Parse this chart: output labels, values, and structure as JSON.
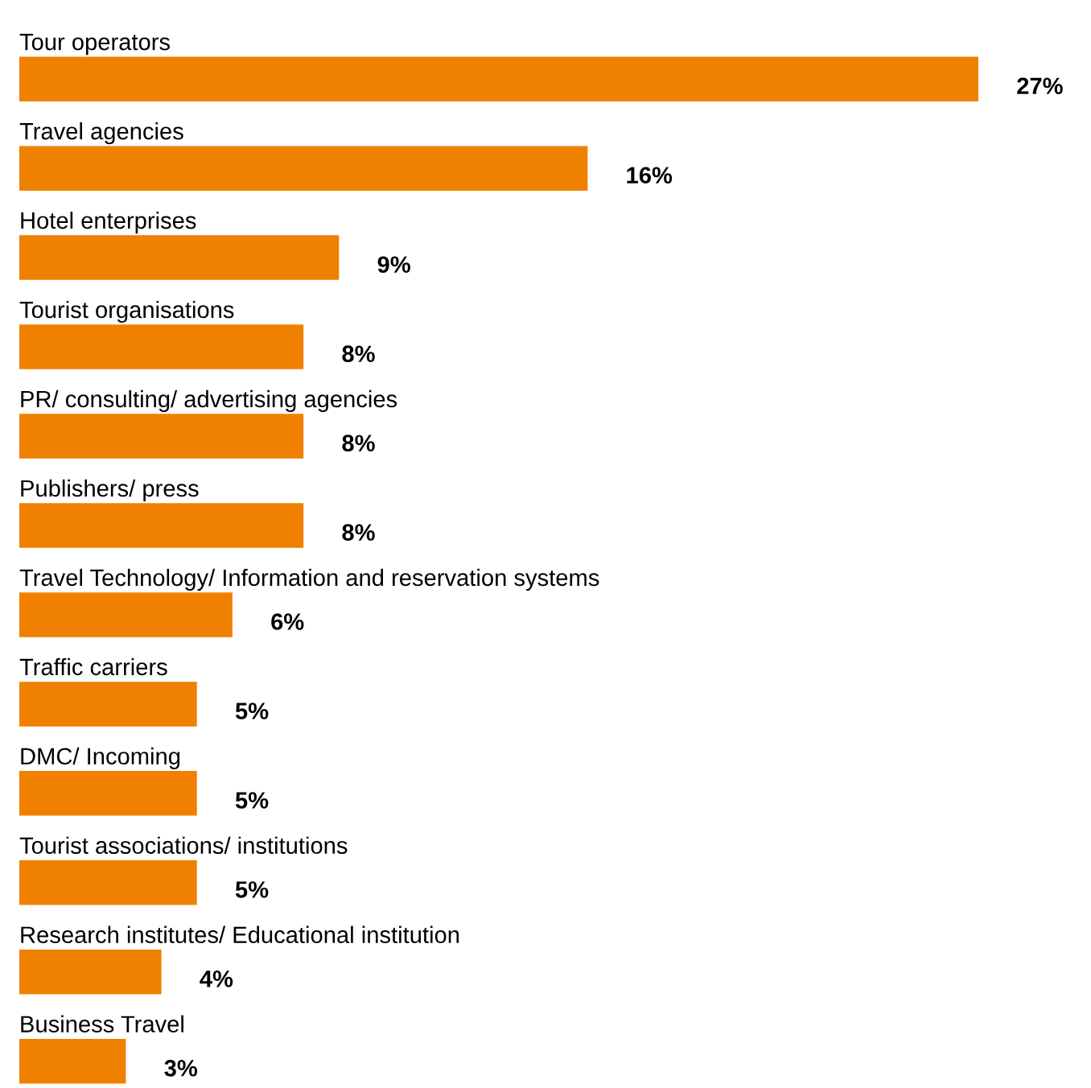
{
  "chart_data": {
    "type": "bar",
    "orientation": "horizontal",
    "categories": [
      "Tour operators",
      "Travel agencies",
      "Hotel enterprises",
      "Tourist organisations",
      "PR/ consulting/ advertising agencies",
      "Publishers/ press",
      "Travel Technology/ Information and reservation systems",
      "Traffic carriers",
      "DMC/ Incoming",
      "Tourist associations/ institutions",
      "Research institutes/ Educational institution",
      "Business Travel"
    ],
    "values": [
      27,
      16,
      9,
      8,
      8,
      8,
      6,
      5,
      5,
      5,
      4,
      3
    ],
    "value_labels": [
      "27%",
      "16%",
      "9%",
      "8%",
      "8%",
      "8%",
      "6%",
      "5%",
      "5%",
      "5%",
      "4%",
      "3%"
    ],
    "color": "#f08000"
  }
}
